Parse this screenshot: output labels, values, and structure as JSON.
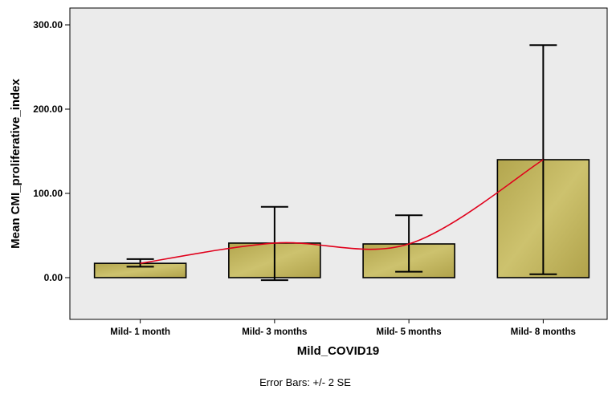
{
  "chart_data": {
    "type": "bar",
    "title": "",
    "xlabel": "Mild_COVID19",
    "ylabel": "Mean CMI_proliferative_index",
    "categories": [
      "Mild- 1 month",
      "Mild- 3 months",
      "Mild- 5 months",
      "Mild- 8 months"
    ],
    "values": [
      17,
      41,
      40,
      140
    ],
    "error_low": [
      13,
      -3,
      7,
      4
    ],
    "error_high": [
      22,
      84,
      74,
      276
    ],
    "y_ticks": [
      "0.00",
      "100.00",
      "200.00",
      "300.00"
    ],
    "y_tick_values": [
      0,
      100,
      200,
      300
    ],
    "ylim": [
      -50,
      320
    ],
    "grid": false,
    "trend_line": true,
    "colors": {
      "bar_fill": "#c2b65c",
      "bar_stroke": "#000000",
      "plot_background": "#ebebeb",
      "trend_line": "#e0001b",
      "error_bar": "#000000"
    },
    "footnote": "Error Bars: +/- 2 SE"
  }
}
